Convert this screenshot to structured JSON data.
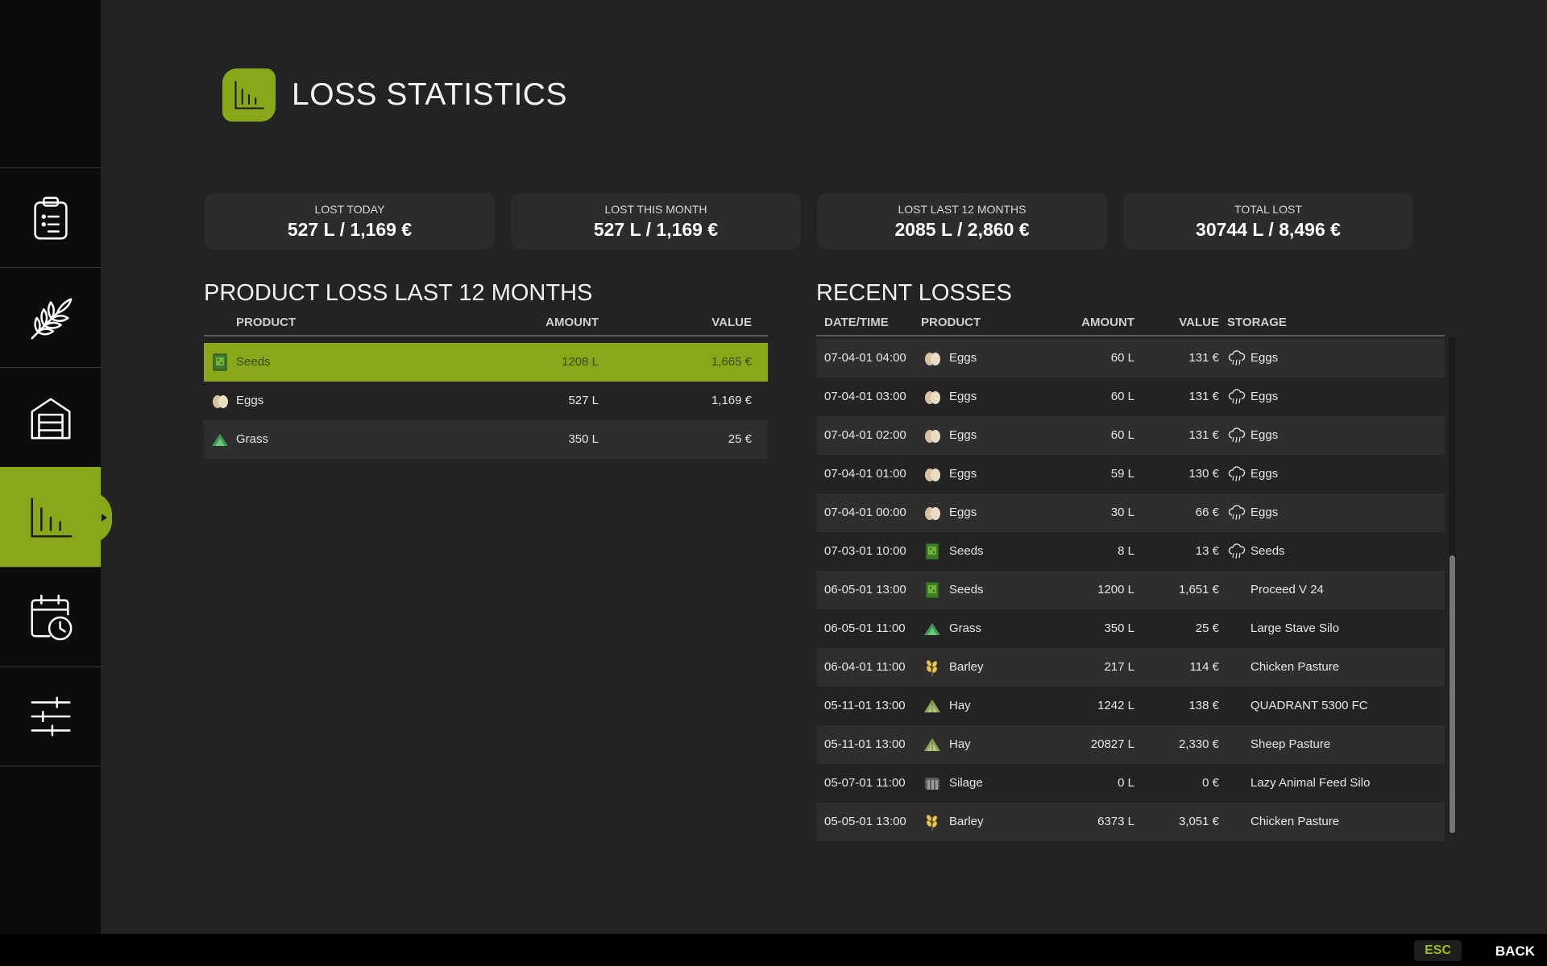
{
  "header": {
    "title": "LOSS STATISTICS",
    "icon": "bar-chart-icon",
    "accent": "#88a81a"
  },
  "sidebar": {
    "items": [
      {
        "name": "tasks",
        "icon": "clipboard-icon",
        "active": false
      },
      {
        "name": "crops",
        "icon": "wheat-icon",
        "active": false
      },
      {
        "name": "storage",
        "icon": "barn-icon",
        "active": false
      },
      {
        "name": "statistics",
        "icon": "bar-chart-icon",
        "active": true
      },
      {
        "name": "calendar",
        "icon": "calendar-clock-icon",
        "active": false
      },
      {
        "name": "settings",
        "icon": "sliders-icon",
        "active": false
      }
    ]
  },
  "stats": [
    {
      "label": "LOST TODAY",
      "value": "527 L / 1,169 €"
    },
    {
      "label": "LOST THIS MONTH",
      "value": "527 L / 1,169 €"
    },
    {
      "label": "LOST LAST 12 MONTHS",
      "value": "2085 L / 2,860 €"
    },
    {
      "label": "TOTAL LOST",
      "value": "30744 L / 8,496 €"
    }
  ],
  "product_loss": {
    "title": "PRODUCT LOSS LAST 12 MONTHS",
    "headers": {
      "product": "PRODUCT",
      "amount": "AMOUNT",
      "value": "VALUE"
    },
    "rows": [
      {
        "icon": "seeds-icon",
        "product": "Seeds",
        "amount": "1208 L",
        "value": "1,665 €",
        "selected": true
      },
      {
        "icon": "eggs-icon",
        "product": "Eggs",
        "amount": "527 L",
        "value": "1,169 €"
      },
      {
        "icon": "grass-icon",
        "product": "Grass",
        "amount": "350 L",
        "value": "25 €"
      }
    ]
  },
  "recent_losses": {
    "title": "RECENT LOSSES",
    "headers": {
      "datetime": "DATE/TIME",
      "product": "PRODUCT",
      "amount": "AMOUNT",
      "value": "VALUE",
      "storage": "STORAGE"
    },
    "rows": [
      {
        "datetime": "07-04-01 04:00",
        "icon": "eggs-icon",
        "product": "Eggs",
        "amount": "60 L",
        "value": "131 €",
        "storage_icon": "rain-icon",
        "storage": "Eggs"
      },
      {
        "datetime": "07-04-01 03:00",
        "icon": "eggs-icon",
        "product": "Eggs",
        "amount": "60 L",
        "value": "131 €",
        "storage_icon": "rain-icon",
        "storage": "Eggs"
      },
      {
        "datetime": "07-04-01 02:00",
        "icon": "eggs-icon",
        "product": "Eggs",
        "amount": "60 L",
        "value": "131 €",
        "storage_icon": "rain-icon",
        "storage": "Eggs"
      },
      {
        "datetime": "07-04-01 01:00",
        "icon": "eggs-icon",
        "product": "Eggs",
        "amount": "59 L",
        "value": "130 €",
        "storage_icon": "rain-icon",
        "storage": "Eggs"
      },
      {
        "datetime": "07-04-01 00:00",
        "icon": "eggs-icon",
        "product": "Eggs",
        "amount": "30 L",
        "value": "66 €",
        "storage_icon": "rain-icon",
        "storage": "Eggs"
      },
      {
        "datetime": "07-03-01 10:00",
        "icon": "seeds-icon",
        "product": "Seeds",
        "amount": "8 L",
        "value": "13 €",
        "storage_icon": "rain-icon",
        "storage": "Seeds"
      },
      {
        "datetime": "06-05-01 13:00",
        "icon": "seeds-icon",
        "product": "Seeds",
        "amount": "1200 L",
        "value": "1,651 €",
        "storage_icon": "",
        "storage": "Proceed V 24"
      },
      {
        "datetime": "06-05-01 11:00",
        "icon": "grass-icon",
        "product": "Grass",
        "amount": "350 L",
        "value": "25 €",
        "storage_icon": "",
        "storage": "Large Stave Silo"
      },
      {
        "datetime": "06-04-01 11:00",
        "icon": "barley-icon",
        "product": "Barley",
        "amount": "217 L",
        "value": "114 €",
        "storage_icon": "",
        "storage": "Chicken Pasture"
      },
      {
        "datetime": "05-11-01 13:00",
        "icon": "hay-icon",
        "product": "Hay",
        "amount": "1242 L",
        "value": "138 €",
        "storage_icon": "",
        "storage": "QUADRANT 5300 FC"
      },
      {
        "datetime": "05-11-01 13:00",
        "icon": "hay-icon",
        "product": "Hay",
        "amount": "20827 L",
        "value": "2,330 €",
        "storage_icon": "",
        "storage": "Sheep Pasture"
      },
      {
        "datetime": "05-07-01 11:00",
        "icon": "silage-icon",
        "product": "Silage",
        "amount": "0 L",
        "value": "0 €",
        "storage_icon": "",
        "storage": "Lazy Animal Feed Silo"
      },
      {
        "datetime": "05-05-01 13:00",
        "icon": "barley-icon",
        "product": "Barley",
        "amount": "6373 L",
        "value": "3,051 €",
        "storage_icon": "",
        "storage": "Chicken Pasture"
      }
    ]
  },
  "footer": {
    "key": "ESC",
    "label": "BACK"
  }
}
